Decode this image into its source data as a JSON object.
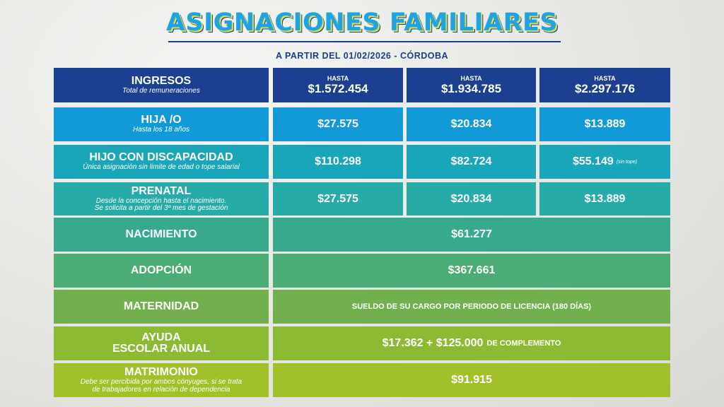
{
  "header": {
    "title": "ASIGNACIONES FAMILIARES",
    "subtitle": "A PARTIR DEL 01/02/2026 - CÓRDOBA"
  },
  "ingresos": {
    "label": "INGRESOS",
    "note": "Total de remuneraciones",
    "hasta_label": "HASTA",
    "tiers": [
      "$1.572.454",
      "$1.934.785",
      "$2.297.176"
    ]
  },
  "hijo": {
    "label": "HIJA /O",
    "note": "Hasta los 18 años",
    "values": [
      "$27.575",
      "$20.834",
      "$13.889"
    ]
  },
  "discapacidad": {
    "label": "HIJO CON DISCAPACIDAD",
    "note": "Única asignación sin limite de edad o tope salarial",
    "values": [
      "$110.298",
      "$82.724",
      "$55.149"
    ],
    "tope_note": "(sin tope)"
  },
  "prenatal": {
    "label": "PRENATAL",
    "note_line1": "Desde la concepción hasta el nacimiento.",
    "note_line2": "Se solicita a partir del 3º mes de gestación",
    "values": [
      "$27.575",
      "$20.834",
      "$13.889"
    ]
  },
  "nacimiento": {
    "label": "NACIMIENTO",
    "value": "$61.277"
  },
  "adopcion": {
    "label": "ADOPCIÓN",
    "value": "$367.661"
  },
  "maternidad": {
    "label": "MATERNIDAD",
    "value": "SUELDO DE SU CARGO POR PERIODO DE LICENCIA (180 DÍAS)"
  },
  "ayuda_escolar": {
    "label_line1": "AYUDA",
    "label_line2": "ESCOLAR ANUAL",
    "value": "$17.362 + $125.000",
    "value_suffix": "DE COMPLEMENTO"
  },
  "matrimonio": {
    "label": "MATRIMONIO",
    "note_line1": "Debe ser percibida por ambos cónyuges, si se trata",
    "note_line2": "de trabajadores en relación de dependencia",
    "value": "$91.915"
  },
  "colors": {
    "title": "#1fa3e2",
    "title_outline": "#1b3f8f",
    "title_shadow": "#d8e34a",
    "ingresos": "#1c3f92",
    "hijo": "#129ad8",
    "discapacidad": "#1aa6b9",
    "prenatal": "#26aba9",
    "nacimiento": "#37aa8e",
    "adopcion": "#4aad76",
    "maternidad": "#72b04e",
    "ayuda_escolar": "#8dba33",
    "matrimonio": "#a0c12a"
  }
}
